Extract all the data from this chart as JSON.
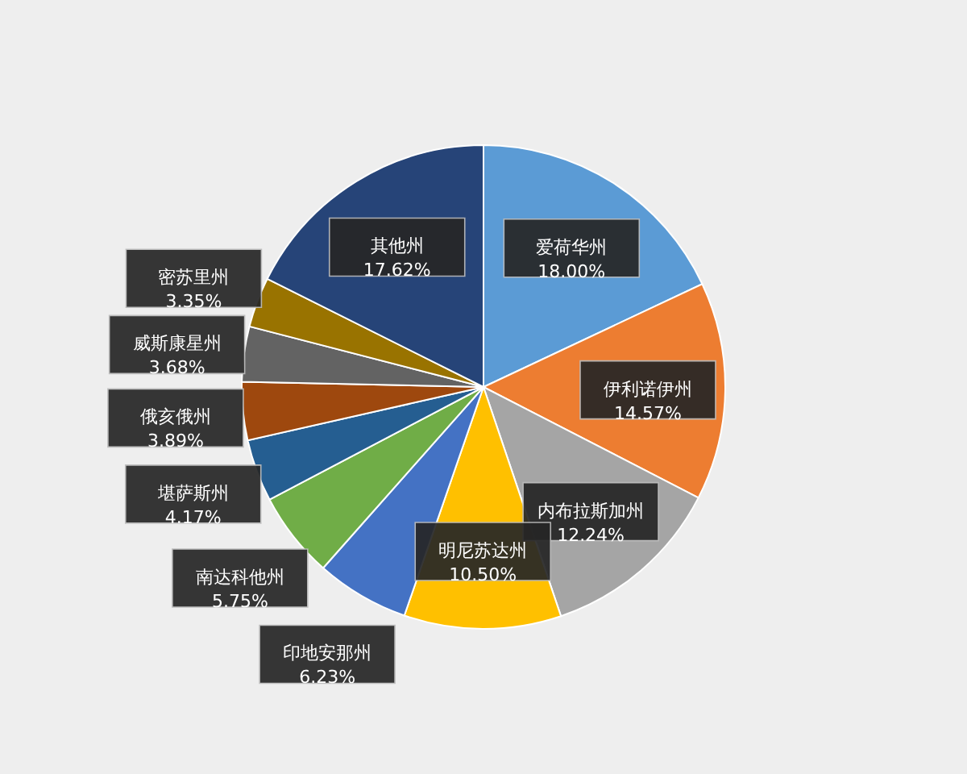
{
  "chart_data": {
    "type": "pie",
    "categories": [
      "爱荷华州",
      "伊利诺伊州",
      "内布拉斯加州",
      "明尼苏达州",
      "印地安那州",
      "南达科他州",
      "堪萨斯州",
      "俄亥俄州",
      "威斯康星州",
      "密苏里州",
      "其他州"
    ],
    "values": [
      18.0,
      14.57,
      12.24,
      10.5,
      6.23,
      5.75,
      4.17,
      3.89,
      3.68,
      3.35,
      17.62
    ],
    "value_labels": [
      "18.00%",
      "14.57%",
      "12.24%",
      "10.50%",
      "6.23%",
      "5.75%",
      "4.17%",
      "3.89%",
      "3.68%",
      "3.35%",
      "17.62%"
    ],
    "colors": [
      "#5b9bd5",
      "#ed7d31",
      "#a5a5a5",
      "#ffc000",
      "#4472c4",
      "#70ad47",
      "#255e91",
      "#9e480e",
      "#636363",
      "#997300",
      "#264478"
    ]
  }
}
